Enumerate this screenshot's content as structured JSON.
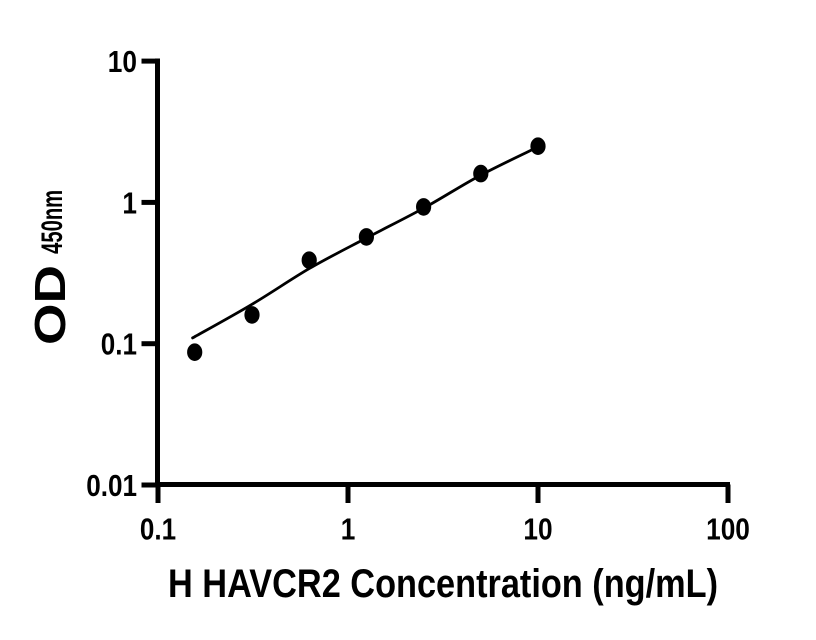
{
  "chart_data": {
    "type": "scatter",
    "xlabel": "H HAVCR2 Concentration (ng/mL)",
    "ylabel_main": "OD",
    "ylabel_sub": "450nm",
    "x_scale": "log10",
    "y_scale": "log10",
    "xlim": [
      0.1,
      100
    ],
    "ylim": [
      0.01,
      10
    ],
    "grid": false,
    "legend": "none",
    "x_ticks": [
      {
        "value": 0.1,
        "label": "0.1"
      },
      {
        "value": 1,
        "label": "1"
      },
      {
        "value": 10,
        "label": "10"
      },
      {
        "value": 100,
        "label": "100"
      }
    ],
    "y_ticks": [
      {
        "value": 0.01,
        "label": "0.01"
      },
      {
        "value": 0.1,
        "label": "0.1"
      },
      {
        "value": 1,
        "label": "1"
      },
      {
        "value": 10,
        "label": "10"
      }
    ],
    "series": [
      {
        "name": "standard-curve-points",
        "marker": "filled-ellipse",
        "color": "#000000",
        "x": [
          0.156,
          0.3125,
          0.625,
          1.25,
          2.5,
          5,
          10
        ],
        "y": [
          0.087,
          0.16,
          0.39,
          0.57,
          0.93,
          1.6,
          2.5
        ]
      }
    ],
    "fit_curve": {
      "name": "fitted-standard-curve",
      "color": "#000000",
      "points": [
        [
          0.152,
          0.11
        ],
        [
          0.3125,
          0.19
        ],
        [
          0.625,
          0.34
        ],
        [
          1.25,
          0.56
        ],
        [
          2.5,
          0.91
        ],
        [
          5,
          1.56
        ],
        [
          10,
          2.47
        ]
      ]
    },
    "colors": {
      "foreground": "#000000",
      "background": "#ffffff"
    }
  }
}
